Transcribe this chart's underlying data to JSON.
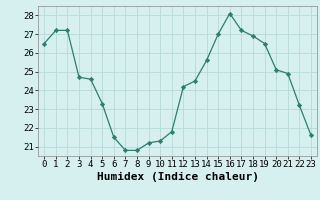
{
  "x": [
    0,
    1,
    2,
    3,
    4,
    5,
    6,
    7,
    8,
    9,
    10,
    11,
    12,
    13,
    14,
    15,
    16,
    17,
    18,
    19,
    20,
    21,
    22,
    23
  ],
  "y": [
    26.5,
    27.2,
    27.2,
    24.7,
    24.6,
    23.3,
    21.5,
    20.8,
    20.8,
    21.2,
    21.3,
    21.8,
    24.2,
    24.5,
    25.6,
    27.0,
    28.1,
    27.2,
    26.9,
    26.5,
    25.1,
    24.9,
    23.2,
    21.6
  ],
  "xlabel": "Humidex (Indice chaleur)",
  "ylim": [
    20.5,
    28.5
  ],
  "xlim": [
    -0.5,
    23.5
  ],
  "yticks": [
    21,
    22,
    23,
    24,
    25,
    26,
    27,
    28
  ],
  "xticks": [
    0,
    1,
    2,
    3,
    4,
    5,
    6,
    7,
    8,
    9,
    10,
    11,
    12,
    13,
    14,
    15,
    16,
    17,
    18,
    19,
    20,
    21,
    22,
    23
  ],
  "line_color": "#2e7d6e",
  "marker_color": "#2e7d6e",
  "bg_color": "#d6f0f0",
  "grid_color": "#b8d8d8",
  "tick_fontsize": 6.5,
  "xlabel_fontsize": 8
}
